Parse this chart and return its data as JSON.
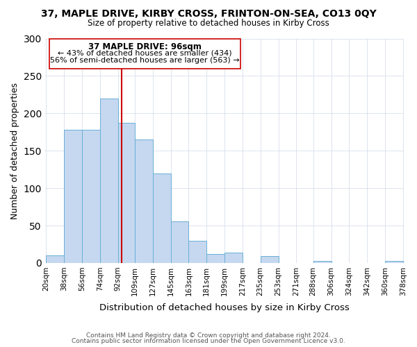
{
  "title": "37, MAPLE DRIVE, KIRBY CROSS, FRINTON-ON-SEA, CO13 0QY",
  "subtitle": "Size of property relative to detached houses in Kirby Cross",
  "xlabel": "Distribution of detached houses by size in Kirby Cross",
  "ylabel": "Number of detached properties",
  "bar_color": "#c5d8f0",
  "bar_edge_color": "#6aaed6",
  "bin_edges": [
    20,
    38,
    56,
    74,
    92,
    109,
    127,
    145,
    163,
    181,
    199,
    217,
    235,
    253,
    271,
    288,
    306,
    324,
    342,
    360,
    378
  ],
  "bin_labels": [
    "20sqm",
    "38sqm",
    "56sqm",
    "74sqm",
    "92sqm",
    "109sqm",
    "127sqm",
    "145sqm",
    "163sqm",
    "181sqm",
    "199sqm",
    "217sqm",
    "235sqm",
    "253sqm",
    "271sqm",
    "288sqm",
    "306sqm",
    "324sqm",
    "342sqm",
    "360sqm",
    "378sqm"
  ],
  "counts": [
    10,
    178,
    178,
    220,
    187,
    165,
    120,
    56,
    30,
    12,
    14,
    0,
    9,
    0,
    0,
    3,
    0,
    0,
    0,
    3
  ],
  "ylim": [
    0,
    300
  ],
  "yticks": [
    0,
    50,
    100,
    150,
    200,
    250,
    300
  ],
  "vline_x": 96,
  "vline_color": "#cc0000",
  "annotation_title": "37 MAPLE DRIVE: 96sqm",
  "annotation_line1": "← 43% of detached houses are smaller (434)",
  "annotation_line2": "56% of semi-detached houses are larger (563) →",
  "annotation_box_color": "#ffffff",
  "annotation_box_edge": "#cc0000",
  "footer1": "Contains HM Land Registry data © Crown copyright and database right 2024.",
  "footer2": "Contains public sector information licensed under the Open Government Licence v3.0.",
  "background_color": "#ffffff",
  "grid_color": "#d0d8e8"
}
